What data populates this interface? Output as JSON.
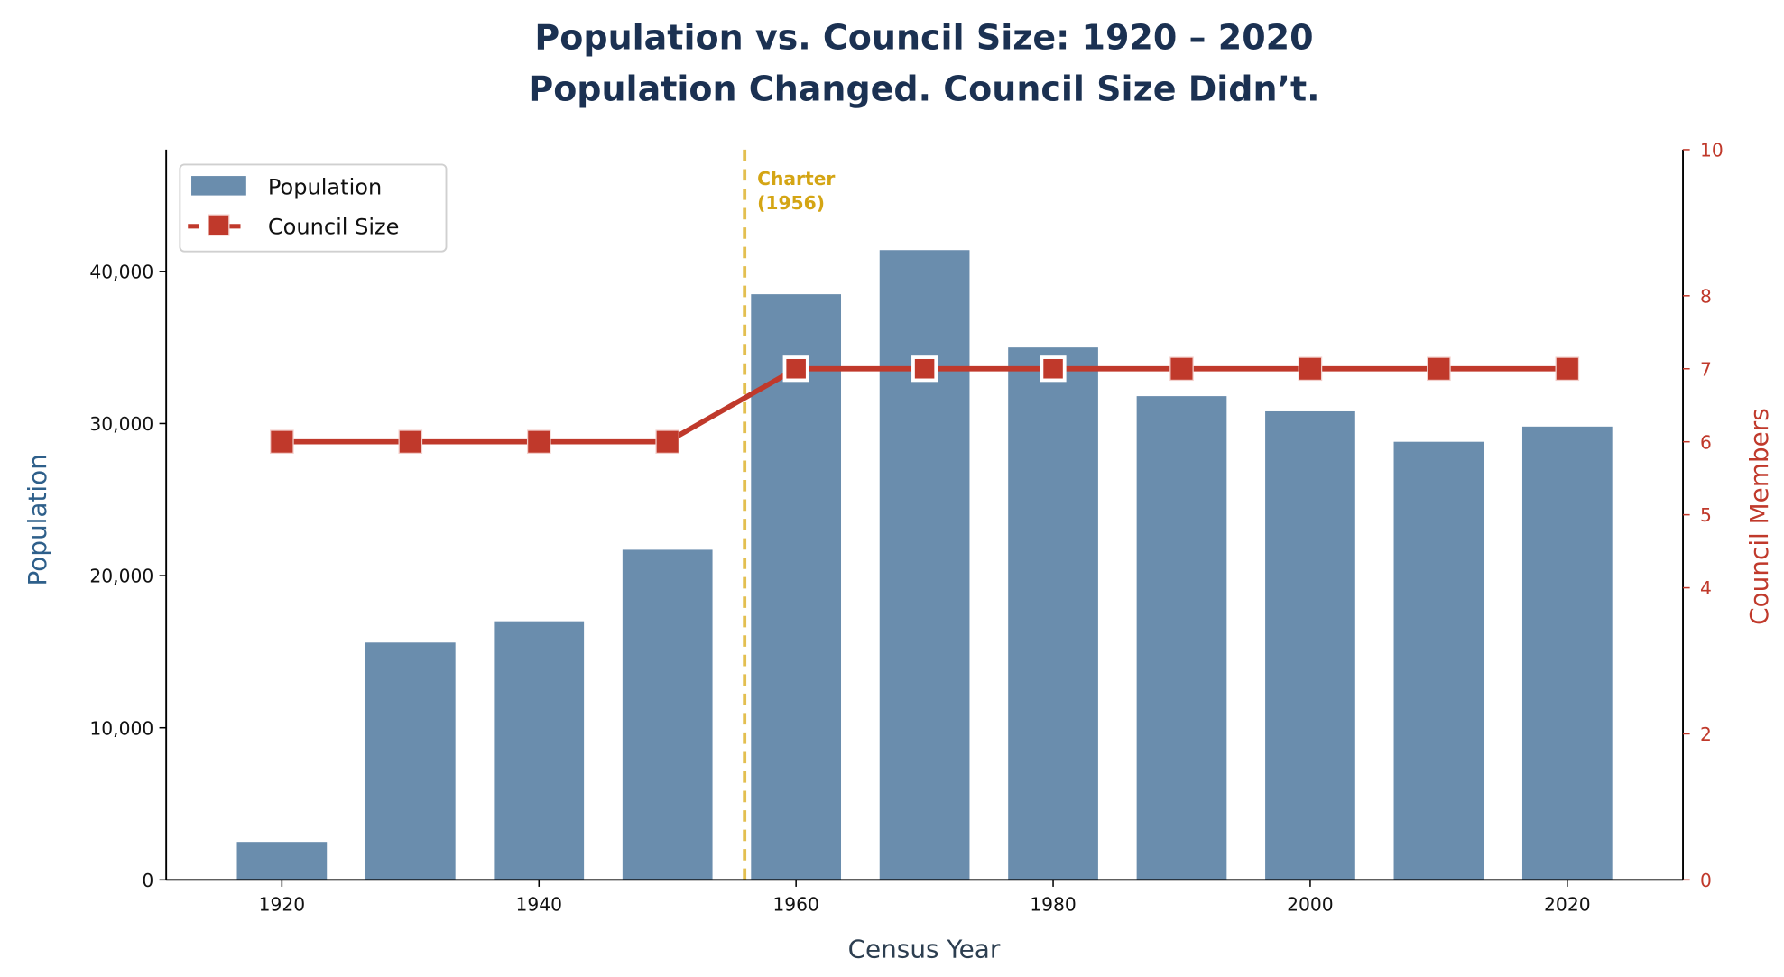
{
  "chart_data": {
    "type": "bar+line",
    "title": "Population vs. Council Size: 1920 – 2020",
    "subtitle": "Population Changed. Council Size Didn’t.",
    "xlabel": "Census Year",
    "ylabel": "Population",
    "y2label": "Council Members",
    "x": [
      1920,
      1930,
      1940,
      1950,
      1960,
      1970,
      1980,
      1990,
      2000,
      2010,
      2020
    ],
    "xlim": [
      1911,
      2029
    ],
    "xticks": [
      1920,
      1940,
      1960,
      1980,
      2000,
      2020
    ],
    "ylim": [
      0,
      48000
    ],
    "yticks": [
      0,
      10000,
      20000,
      30000,
      40000
    ],
    "ytick_labels": [
      "0",
      "10,000",
      "20,000",
      "30,000",
      "40,000"
    ],
    "y2lim": [
      0,
      10
    ],
    "y2ticks": [
      0,
      2,
      4,
      5,
      6,
      7,
      8,
      10
    ],
    "series": [
      {
        "name": "Population",
        "kind": "bar",
        "axis": "left",
        "color": "#6a8dad",
        "values": [
          2500,
          15600,
          17000,
          21700,
          38500,
          41400,
          35000,
          31800,
          30800,
          28800,
          29800
        ]
      },
      {
        "name": "Council Size",
        "kind": "line",
        "axis": "right",
        "color": "#c0392b",
        "marker": "square",
        "values": [
          6,
          6,
          6,
          6,
          7,
          7,
          7,
          7,
          7,
          7,
          7
        ]
      }
    ],
    "annotations": [
      {
        "x": 1956,
        "text_lines": [
          "Charter",
          "(1956)"
        ],
        "style": "dashed vertical line",
        "color": "#e3bf50",
        "text_color": "#d4a514"
      }
    ],
    "legend": "top-left",
    "grid": false,
    "colors": {
      "title": "#1b3152",
      "left_axis_label": "#2e5f8a",
      "right_axis": "#c0392b",
      "xlabel": "#2c3e50"
    }
  }
}
